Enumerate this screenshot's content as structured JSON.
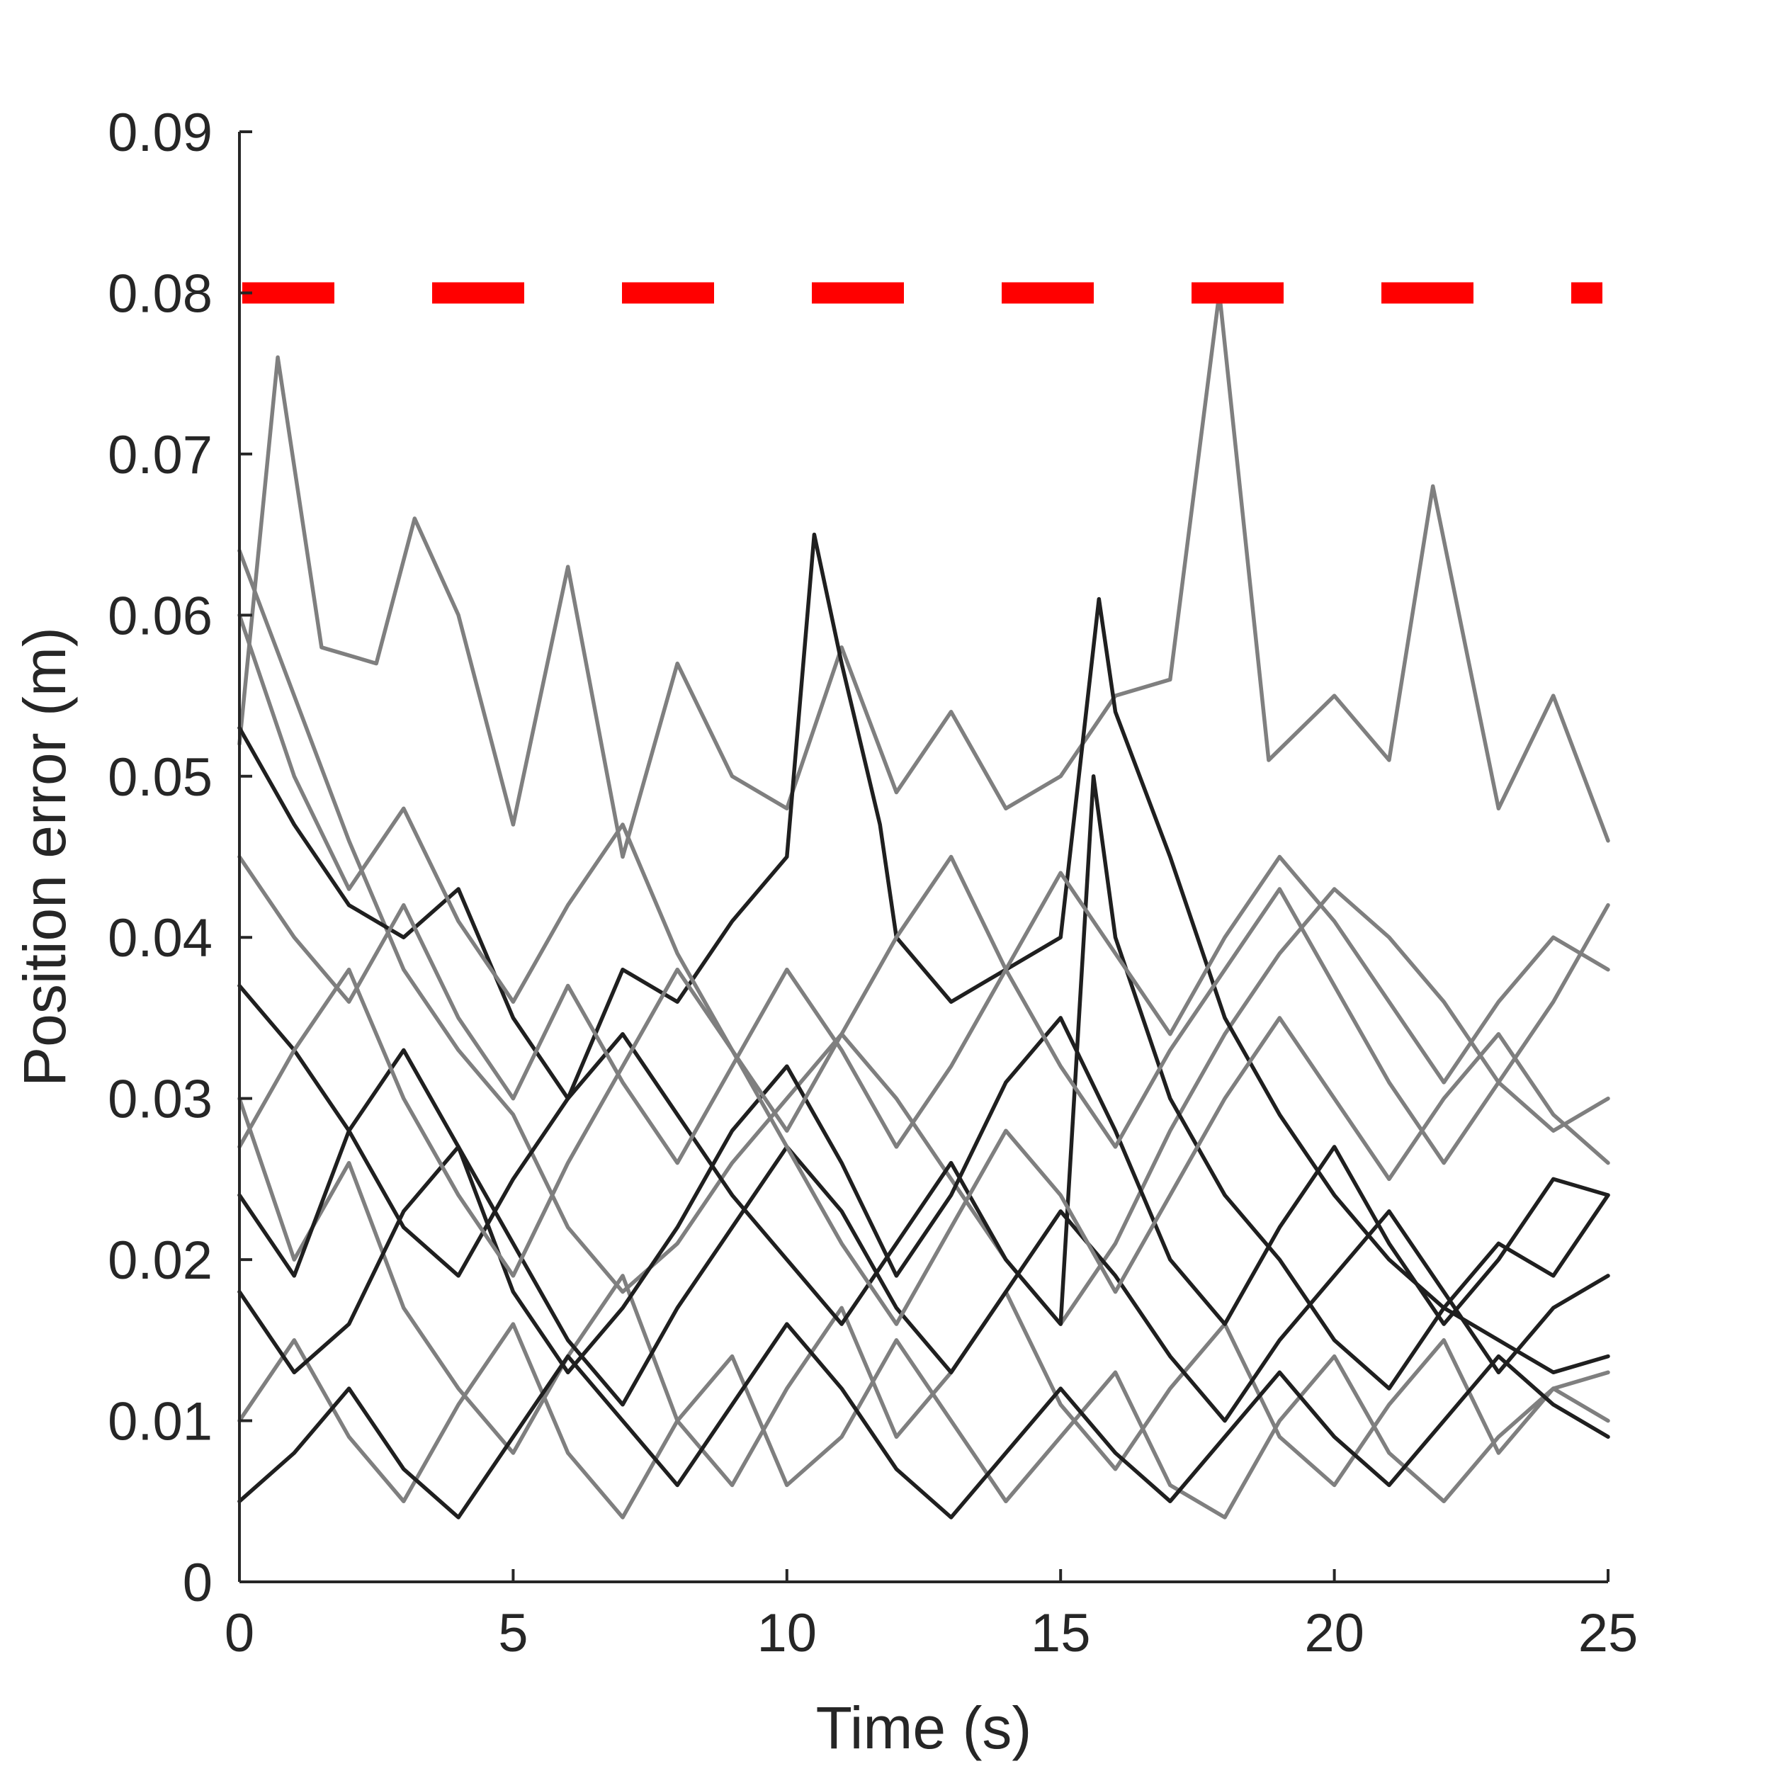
{
  "chart_data": {
    "type": "line",
    "title": "",
    "xlabel": "Time (s)",
    "ylabel": "Position error (m)",
    "xlim": [
      0,
      25
    ],
    "ylim": [
      0,
      0.09
    ],
    "xticks": [
      0,
      5,
      10,
      15,
      20,
      25
    ],
    "xtick_labels": [
      "0",
      "5",
      "10",
      "15",
      "20",
      "25"
    ],
    "yticks": [
      0,
      0.01,
      0.02,
      0.03,
      0.04,
      0.05,
      0.06,
      0.07,
      0.08,
      0.09
    ],
    "ytick_labels": [
      "0",
      "0.01",
      "0.02",
      "0.03",
      "0.04",
      "0.05",
      "0.06",
      "0.07",
      "0.08",
      "0.09"
    ],
    "grid": false,
    "threshold": {
      "y": 0.08,
      "color": "#ff0000",
      "style": "dashed"
    },
    "trace_colors": [
      "#7f7f7f",
      "#1f1f1f"
    ],
    "series": [
      {
        "color": "#7f7f7f",
        "x": [
          0,
          1,
          2,
          3,
          4,
          5,
          6,
          7,
          8,
          9,
          10,
          11,
          12,
          13,
          14,
          15,
          16,
          17,
          18,
          19,
          20,
          21,
          22,
          23,
          24,
          25
        ],
        "values": [
          0.064,
          0.055,
          0.046,
          0.038,
          0.033,
          0.029,
          0.022,
          0.018,
          0.021,
          0.026,
          0.03,
          0.034,
          0.03,
          0.025,
          0.02,
          0.016,
          0.021,
          0.028,
          0.034,
          0.039,
          0.043,
          0.04,
          0.036,
          0.031,
          0.028,
          0.03
        ]
      },
      {
        "color": "#7f7f7f",
        "x": [
          0,
          0.7,
          1.5,
          2.5,
          3.2,
          4,
          5,
          6,
          7,
          8,
          9,
          10,
          11,
          12,
          13,
          14,
          15,
          16,
          17,
          17.9,
          18.8,
          20,
          21,
          21.8,
          23,
          24,
          25
        ],
        "values": [
          0.052,
          0.076,
          0.058,
          0.057,
          0.066,
          0.06,
          0.047,
          0.063,
          0.045,
          0.057,
          0.05,
          0.048,
          0.058,
          0.049,
          0.054,
          0.048,
          0.05,
          0.055,
          0.056,
          0.08,
          0.051,
          0.055,
          0.051,
          0.068,
          0.048,
          0.055,
          0.046
        ]
      },
      {
        "color": "#7f7f7f",
        "x": [
          0,
          1,
          2,
          3,
          4,
          5,
          6,
          7,
          8,
          9,
          10,
          11,
          12,
          13,
          14,
          15,
          16,
          17,
          18,
          19,
          20,
          21,
          22,
          23,
          24,
          25
        ],
        "values": [
          0.03,
          0.02,
          0.026,
          0.017,
          0.012,
          0.008,
          0.014,
          0.019,
          0.01,
          0.006,
          0.012,
          0.017,
          0.009,
          0.013,
          0.018,
          0.011,
          0.007,
          0.012,
          0.016,
          0.009,
          0.006,
          0.011,
          0.015,
          0.008,
          0.012,
          0.013
        ]
      },
      {
        "color": "#1f1f1f",
        "x": [
          0,
          1,
          2,
          3,
          4,
          5,
          6,
          7,
          8,
          9,
          10,
          10.5,
          11,
          11.7,
          12,
          13,
          14,
          15,
          15.7,
          16,
          17,
          18,
          19,
          20,
          21,
          22,
          23,
          24,
          25
        ],
        "values": [
          0.053,
          0.047,
          0.042,
          0.04,
          0.043,
          0.035,
          0.03,
          0.038,
          0.036,
          0.041,
          0.045,
          0.065,
          0.057,
          0.047,
          0.04,
          0.036,
          0.038,
          0.04,
          0.061,
          0.054,
          0.045,
          0.035,
          0.029,
          0.024,
          0.02,
          0.017,
          0.015,
          0.013,
          0.014
        ]
      },
      {
        "color": "#1f1f1f",
        "x": [
          0,
          1,
          2,
          3,
          4,
          5,
          6,
          7,
          8,
          9,
          10,
          11,
          12,
          13,
          14,
          15,
          16,
          17,
          18,
          19,
          20,
          21,
          22,
          23,
          24,
          25
        ],
        "values": [
          0.024,
          0.019,
          0.028,
          0.033,
          0.027,
          0.018,
          0.013,
          0.017,
          0.022,
          0.028,
          0.032,
          0.026,
          0.019,
          0.024,
          0.031,
          0.035,
          0.028,
          0.02,
          0.016,
          0.022,
          0.027,
          0.021,
          0.016,
          0.02,
          0.025,
          0.024
        ]
      },
      {
        "color": "#7f7f7f",
        "x": [
          0,
          1,
          2,
          3,
          4,
          5,
          6,
          7,
          8,
          9,
          10,
          11,
          12,
          13,
          14,
          15,
          16,
          17,
          18,
          19,
          20,
          21,
          22,
          23,
          24,
          25
        ],
        "values": [
          0.01,
          0.015,
          0.009,
          0.005,
          0.011,
          0.016,
          0.008,
          0.004,
          0.01,
          0.014,
          0.006,
          0.009,
          0.015,
          0.01,
          0.005,
          0.009,
          0.013,
          0.006,
          0.004,
          0.01,
          0.014,
          0.008,
          0.005,
          0.009,
          0.012,
          0.01
        ]
      },
      {
        "color": "#1f1f1f",
        "x": [
          0,
          1,
          2,
          3,
          4,
          5,
          6,
          7,
          8,
          9,
          10,
          11,
          12,
          13,
          14,
          15,
          15.6,
          16,
          17,
          18,
          19,
          20,
          21,
          22,
          23,
          24,
          25
        ],
        "values": [
          0.037,
          0.033,
          0.028,
          0.022,
          0.019,
          0.025,
          0.03,
          0.034,
          0.029,
          0.024,
          0.02,
          0.016,
          0.021,
          0.026,
          0.02,
          0.016,
          0.05,
          0.04,
          0.03,
          0.024,
          0.02,
          0.015,
          0.012,
          0.017,
          0.021,
          0.019,
          0.024
        ]
      },
      {
        "color": "#7f7f7f",
        "x": [
          0,
          1,
          2,
          3,
          4,
          5,
          6,
          7,
          8,
          9,
          10,
          11,
          12,
          13,
          14,
          15,
          16,
          17,
          18,
          19,
          20,
          21,
          22,
          23,
          24,
          25
        ],
        "values": [
          0.045,
          0.04,
          0.036,
          0.042,
          0.035,
          0.03,
          0.037,
          0.031,
          0.026,
          0.032,
          0.038,
          0.033,
          0.027,
          0.032,
          0.038,
          0.044,
          0.039,
          0.034,
          0.04,
          0.045,
          0.041,
          0.036,
          0.031,
          0.036,
          0.04,
          0.038
        ]
      },
      {
        "color": "#1f1f1f",
        "x": [
          0,
          1,
          2,
          3,
          4,
          5,
          6,
          7,
          8,
          9,
          10,
          11,
          12,
          13,
          14,
          15,
          16,
          17,
          18,
          19,
          20,
          21,
          22,
          23,
          24,
          25
        ],
        "values": [
          0.018,
          0.013,
          0.016,
          0.023,
          0.027,
          0.021,
          0.015,
          0.011,
          0.017,
          0.022,
          0.027,
          0.023,
          0.017,
          0.013,
          0.018,
          0.023,
          0.019,
          0.014,
          0.01,
          0.015,
          0.019,
          0.023,
          0.018,
          0.013,
          0.017,
          0.019
        ]
      },
      {
        "color": "#7f7f7f",
        "x": [
          0,
          1,
          2,
          3,
          4,
          5,
          6,
          7,
          8,
          9,
          10,
          11,
          12,
          13,
          14,
          15,
          16,
          17,
          18,
          19,
          20,
          21,
          22,
          23,
          24,
          25
        ],
        "values": [
          0.027,
          0.033,
          0.038,
          0.03,
          0.024,
          0.019,
          0.026,
          0.032,
          0.038,
          0.033,
          0.027,
          0.021,
          0.016,
          0.022,
          0.028,
          0.024,
          0.018,
          0.024,
          0.03,
          0.035,
          0.03,
          0.025,
          0.03,
          0.034,
          0.029,
          0.026
        ]
      },
      {
        "color": "#1f1f1f",
        "x": [
          0,
          1,
          2,
          3,
          4,
          5,
          6,
          7,
          8,
          9,
          10,
          11,
          12,
          13,
          14,
          15,
          16,
          17,
          18,
          19,
          20,
          21,
          22,
          23,
          24,
          25
        ],
        "values": [
          0.005,
          0.008,
          0.012,
          0.007,
          0.004,
          0.009,
          0.014,
          0.01,
          0.006,
          0.011,
          0.016,
          0.012,
          0.007,
          0.004,
          0.008,
          0.012,
          0.008,
          0.005,
          0.009,
          0.013,
          0.009,
          0.006,
          0.01,
          0.014,
          0.011,
          0.009
        ]
      },
      {
        "color": "#7f7f7f",
        "x": [
          0,
          1,
          2,
          3,
          4,
          5,
          6,
          7,
          8,
          9,
          10,
          11,
          12,
          13,
          14,
          15,
          16,
          17,
          18,
          19,
          20,
          21,
          22,
          23,
          24,
          25
        ],
        "values": [
          0.06,
          0.05,
          0.043,
          0.048,
          0.041,
          0.036,
          0.042,
          0.047,
          0.039,
          0.033,
          0.028,
          0.034,
          0.04,
          0.045,
          0.038,
          0.032,
          0.027,
          0.033,
          0.038,
          0.043,
          0.037,
          0.031,
          0.026,
          0.031,
          0.036,
          0.042
        ]
      }
    ]
  }
}
